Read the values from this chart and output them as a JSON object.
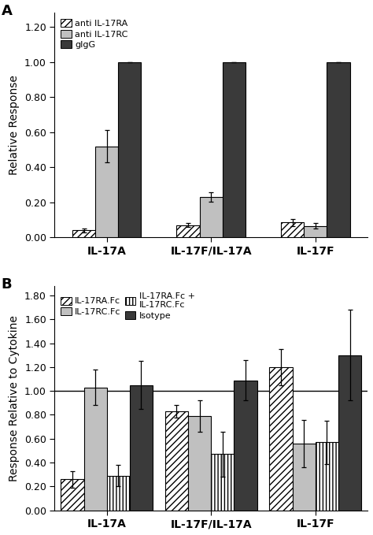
{
  "panel_A": {
    "title_label": "A",
    "groups": [
      "IL-17A",
      "IL-17F/IL-17A",
      "IL-17F"
    ],
    "series": [
      {
        "name": "anti IL-17RA",
        "values": [
          0.04,
          0.07,
          0.085
        ],
        "errors": [
          0.01,
          0.01,
          0.02
        ],
        "color": "#ffffff",
        "hatch": "////"
      },
      {
        "name": "anti IL-17RC",
        "values": [
          0.52,
          0.23,
          0.065
        ],
        "errors": [
          0.09,
          0.025,
          0.015
        ],
        "color": "#c0c0c0",
        "hatch": ""
      },
      {
        "name": "gIgG",
        "values": [
          1.0,
          1.0,
          1.0
        ],
        "errors": [
          0.0,
          0.0,
          0.0
        ],
        "color": "#3a3a3a",
        "hatch": ""
      }
    ],
    "ylabel": "Relative Response",
    "ylim": [
      0.0,
      1.28
    ],
    "yticks": [
      0.0,
      0.2,
      0.4,
      0.6,
      0.8,
      1.0,
      1.2
    ],
    "legend_loc": "upper left",
    "legend_ncol": 1,
    "legend_bbox": null
  },
  "panel_B": {
    "title_label": "B",
    "groups": [
      "IL-17A",
      "IL-17F/IL-17A",
      "IL-17F"
    ],
    "series": [
      {
        "name": "IL-17RA.Fc",
        "values": [
          0.26,
          0.83,
          1.2
        ],
        "errors": [
          0.07,
          0.05,
          0.15
        ],
        "color": "#ffffff",
        "hatch": "////"
      },
      {
        "name": "IL-17RC.Fc",
        "values": [
          1.03,
          0.79,
          0.56
        ],
        "errors": [
          0.15,
          0.13,
          0.2
        ],
        "color": "#c0c0c0",
        "hatch": ""
      },
      {
        "name": "IL-17RA.Fc +\nIL-17RC.Fc",
        "values": [
          0.29,
          0.47,
          0.57
        ],
        "errors": [
          0.09,
          0.19,
          0.18
        ],
        "color": "#ffffff",
        "hatch": "||||"
      },
      {
        "name": "Isotype",
        "values": [
          1.05,
          1.09,
          1.3
        ],
        "errors": [
          0.2,
          0.17,
          0.38
        ],
        "color": "#3a3a3a",
        "hatch": ""
      }
    ],
    "ylabel": "Response Relative to Cytokine",
    "ylim": [
      0.0,
      1.88
    ],
    "yticks": [
      0.0,
      0.2,
      0.4,
      0.6,
      0.8,
      1.0,
      1.2,
      1.4,
      1.6,
      1.8
    ],
    "hline": 1.0,
    "legend_loc": "upper left",
    "legend_ncol": 2,
    "legend_bbox": null
  },
  "background_color": "#ffffff",
  "bar_width": 0.22,
  "fontsize_label": 10,
  "fontsize_tick": 9,
  "fontsize_legend": 8,
  "fontsize_panel": 13
}
